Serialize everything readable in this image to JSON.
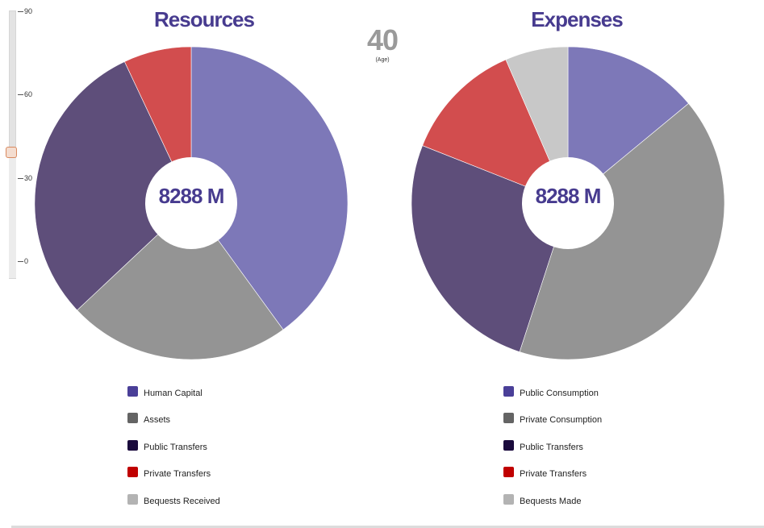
{
  "age": {
    "value": "40",
    "caption": "(Age)",
    "slider": {
      "min": 0,
      "max": 90,
      "current": 40,
      "ticks": [
        "90",
        "60",
        "30",
        "0"
      ]
    }
  },
  "chart_data": [
    {
      "type": "pie",
      "title": "Resources",
      "center_label": "8288 M",
      "slices": [
        {
          "name": "Human Capital",
          "value": 40,
          "color": "#7d78b8"
        },
        {
          "name": "Assets",
          "value": 23,
          "color": "#949494"
        },
        {
          "name": "Public Transfers",
          "value": 30,
          "color": "#5e4e7a"
        },
        {
          "name": "Private Transfers",
          "value": 7,
          "color": "#d24d4e"
        },
        {
          "name": "Bequests Received",
          "value": 0,
          "color": "#c8c8c8"
        }
      ],
      "legend": [
        {
          "label": "Human Capital",
          "color": "#4a3f98"
        },
        {
          "label": "Assets",
          "color": "#646464"
        },
        {
          "label": "Public Transfers",
          "color": "#1a0a3c"
        },
        {
          "label": "Private Transfers",
          "color": "#c00000"
        },
        {
          "label": "Bequests Received",
          "color": "#b3b3b3"
        }
      ]
    },
    {
      "type": "pie",
      "title": "Expenses",
      "center_label": "8288 M",
      "slices": [
        {
          "name": "Public Consumption",
          "value": 14,
          "color": "#7d78b8"
        },
        {
          "name": "Private Consumption",
          "value": 41,
          "color": "#949494"
        },
        {
          "name": "Public Transfers",
          "value": 26,
          "color": "#5e4e7a"
        },
        {
          "name": "Private Transfers",
          "value": 12.5,
          "color": "#d24d4e"
        },
        {
          "name": "Bequests Made",
          "value": 6.5,
          "color": "#c8c8c8"
        }
      ],
      "legend": [
        {
          "label": "Public Consumption",
          "color": "#4a3f98"
        },
        {
          "label": "Private Consumption",
          "color": "#646464"
        },
        {
          "label": "Public Transfers",
          "color": "#1a0a3c"
        },
        {
          "label": "Private Transfers",
          "color": "#c00000"
        },
        {
          "label": "Bequests Made",
          "color": "#b3b3b3"
        }
      ]
    }
  ]
}
